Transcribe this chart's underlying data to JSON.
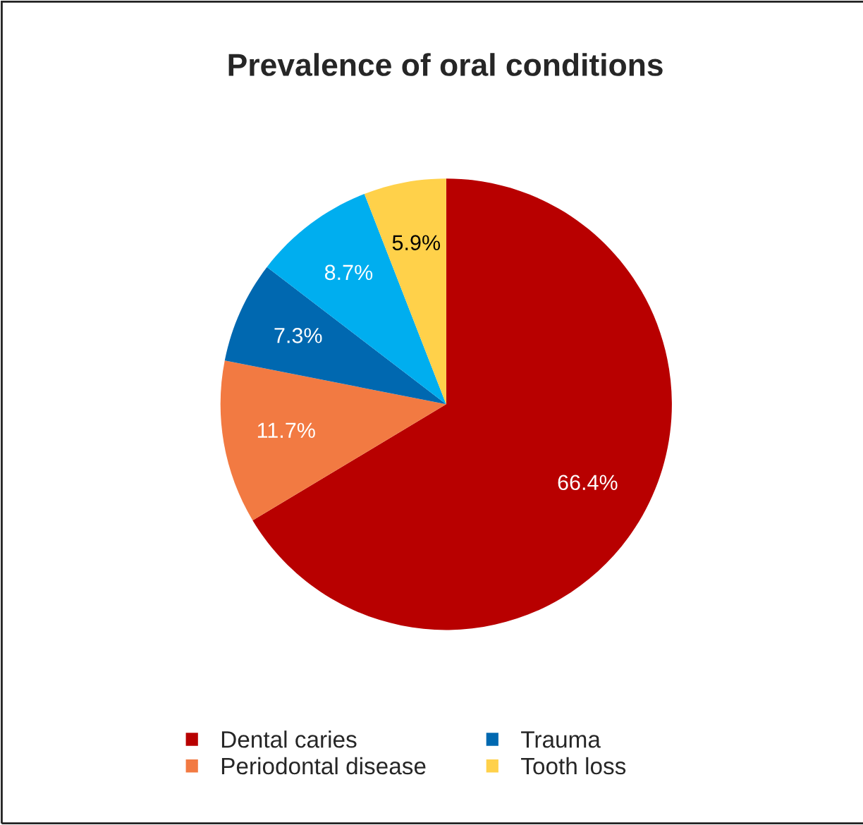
{
  "chart_data": {
    "type": "pie",
    "title": "Prevalence of oral conditions",
    "categories": [
      "Dental caries",
      "Periodontal disease",
      "Trauma",
      null,
      "Tooth loss"
    ],
    "values": [
      66.4,
      11.7,
      7.3,
      8.7,
      5.9
    ],
    "colors": [
      "#b80000",
      "#f27a42",
      "#0068b0",
      "#00aeef",
      "#ffd14a"
    ],
    "value_labels": [
      "66.4%",
      "11.7%",
      "7.3%",
      "8.7%",
      "5.9%"
    ],
    "legend": "bottom"
  }
}
